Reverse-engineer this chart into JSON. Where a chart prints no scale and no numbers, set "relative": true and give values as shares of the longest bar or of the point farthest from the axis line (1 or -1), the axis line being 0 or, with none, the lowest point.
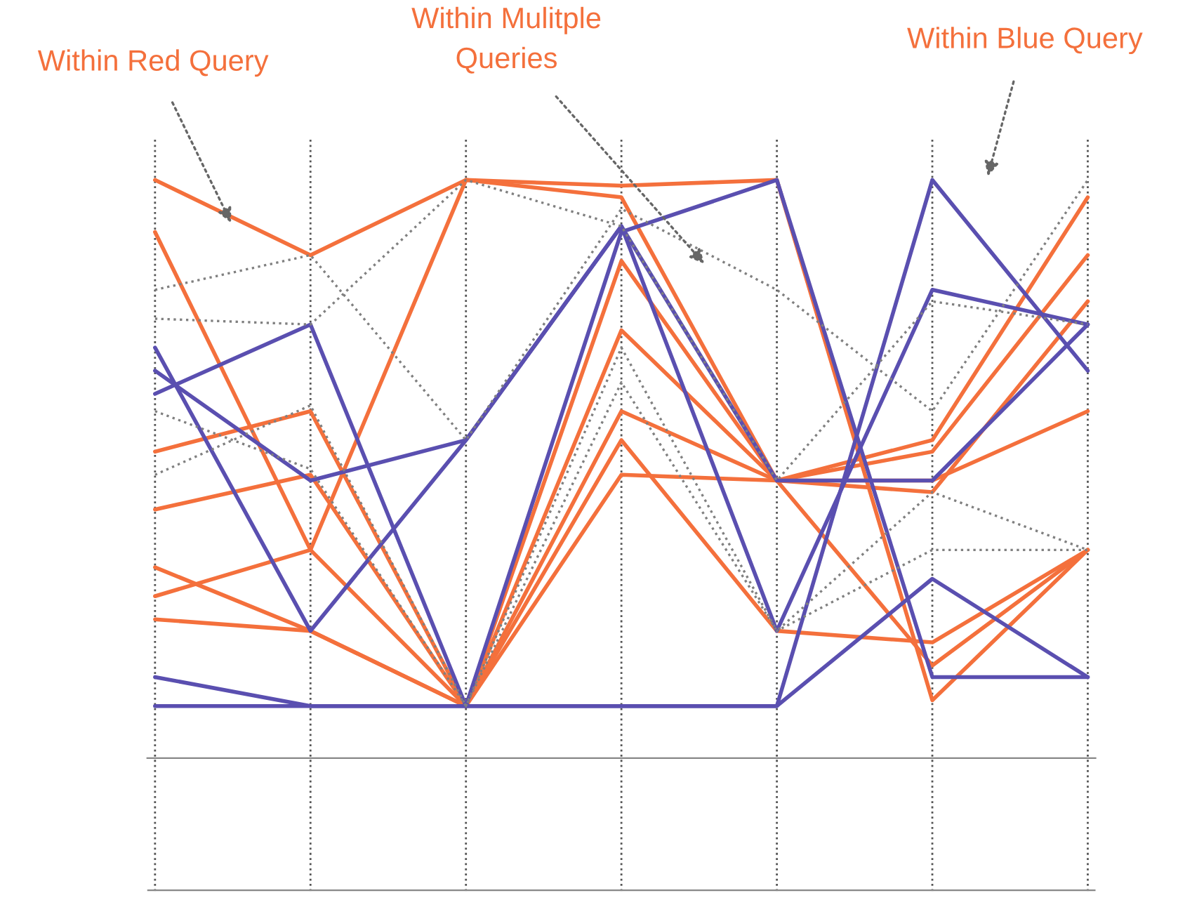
{
  "chart_data": {
    "type": "line",
    "relative": true,
    "grid": "x",
    "legend": false,
    "marker": "none",
    "categories": [
      null,
      null,
      null,
      null,
      null,
      null,
      null
    ],
    "annotations": [
      "Within Red Query",
      "Within Mulitple\nQueries",
      "Within Blue Query"
    ],
    "series": [
      {
        "color": "#f4703c",
        "line_style": "solid",
        "values": [
          1.0,
          0.87,
          1.0,
          0.99,
          1.0,
          0.1,
          0.36
        ]
      },
      {
        "color": "#f4703c",
        "line_style": "solid",
        "values": [
          0.91,
          0.36,
          0.09,
          0.86,
          0.48,
          0.55,
          0.97
        ]
      },
      {
        "color": "#f4703c",
        "line_style": "solid",
        "values": [
          0.53,
          0.6,
          0.09,
          0.6,
          0.48,
          0.16,
          0.36
        ]
      },
      {
        "color": "#f4703c",
        "line_style": "solid",
        "values": [
          0.43,
          0.49,
          0.09,
          0.49,
          0.48,
          0.48,
          0.6
        ]
      },
      {
        "color": "#f4703c",
        "line_style": "solid",
        "values": [
          0.33,
          0.22,
          0.09,
          0.55,
          0.22,
          0.2,
          0.36
        ]
      },
      {
        "color": "#f4703c",
        "line_style": "solid",
        "values": [
          0.28,
          0.36,
          1.0,
          0.97,
          0.48,
          0.53,
          0.87
        ]
      },
      {
        "color": "#f4703c",
        "line_style": "solid",
        "values": [
          0.24,
          0.22,
          0.09,
          0.74,
          0.48,
          0.46,
          0.79
        ]
      },
      {
        "color": "#5a4fb0",
        "line_style": "solid",
        "values": [
          0.14,
          0.09,
          0.09,
          0.09,
          0.09,
          0.31,
          0.14
        ]
      },
      {
        "color": "#5a4fb0",
        "line_style": "solid",
        "values": [
          0.09,
          0.09,
          0.09,
          0.09,
          0.09,
          1.0,
          0.67
        ]
      },
      {
        "color": "#5a4fb0",
        "line_style": "solid",
        "values": [
          0.71,
          0.22,
          0.55,
          0.92,
          0.22,
          0.81,
          0.75
        ]
      },
      {
        "color": "#5a4fb0",
        "line_style": "solid",
        "values": [
          0.63,
          0.75,
          0.09,
          0.91,
          1.0,
          0.14,
          0.14
        ]
      },
      {
        "color": "#5a4fb0",
        "line_style": "solid",
        "values": [
          0.67,
          0.48,
          0.55,
          0.92,
          0.48,
          0.48,
          0.75
        ]
      },
      {
        "color": "#808080",
        "line_style": "dotted",
        "values": [
          0.81,
          0.87,
          0.55,
          0.95,
          0.81,
          0.6,
          1.0
        ]
      },
      {
        "color": "#808080",
        "line_style": "dotted",
        "values": [
          0.76,
          0.75,
          1.0,
          0.92,
          0.48,
          0.79,
          0.75
        ]
      },
      {
        "color": "#808080",
        "line_style": "dotted",
        "values": [
          0.49,
          0.61,
          0.09,
          0.71,
          0.22,
          0.36,
          0.36
        ]
      },
      {
        "color": "#808080",
        "line_style": "dotted",
        "values": [
          0.6,
          0.5,
          0.09,
          0.65,
          0.22,
          0.46,
          0.36
        ]
      }
    ]
  }
}
